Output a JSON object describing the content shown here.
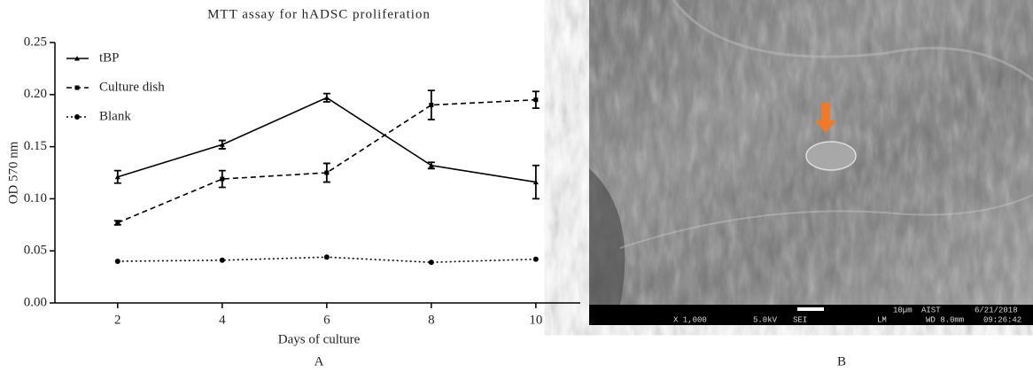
{
  "chart_data": {
    "type": "line",
    "title": "MTT assay for hADSC proliferation",
    "x_label": "Days of culture",
    "y_label": "OD 570 nm",
    "x": [
      2,
      4,
      6,
      8,
      10
    ],
    "series": [
      {
        "name": "tBP",
        "color": "#000000",
        "line_style": "solid",
        "marker": "triangle",
        "values": [
          0.121,
          0.152,
          0.197,
          0.132,
          0.116
        ],
        "errors": [
          0.006,
          0.004,
          0.004,
          0.003,
          0.016
        ]
      },
      {
        "name": "Culture dish",
        "color": "#000000",
        "line_style": "dashed",
        "marker": "square",
        "values": [
          0.077,
          0.119,
          0.125,
          0.19,
          0.195
        ],
        "errors": [
          0.002,
          0.008,
          0.009,
          0.014,
          0.008
        ]
      },
      {
        "name": "Blank",
        "color": "#000000",
        "line_style": "dotted",
        "marker": "circle",
        "values": [
          0.04,
          0.041,
          0.044,
          0.039,
          0.042
        ]
      }
    ],
    "xlim": [
      0.8,
      10.85
    ],
    "xticks": [
      2,
      4,
      6,
      8,
      10
    ],
    "ylim": [
      0,
      0.25
    ],
    "yticks": [
      {
        "value": 0,
        "label": "0.00"
      },
      0.05,
      {
        "value": 0.1,
        "label": "0.10"
      },
      0.15,
      {
        "value": 0.2,
        "label": "0.20"
      },
      0.25
    ],
    "legend": "upper left",
    "grid": false
  },
  "panel_labels": [
    "A",
    "B"
  ],
  "sem_image": {
    "info_top": [
      "10µm",
      "AIST",
      "6/21/2018"
    ],
    "info_bottom": [
      "X 1,000",
      "5.0kV",
      "SEI",
      "LM",
      "WD 8.0mm",
      "09:26:42"
    ]
  }
}
